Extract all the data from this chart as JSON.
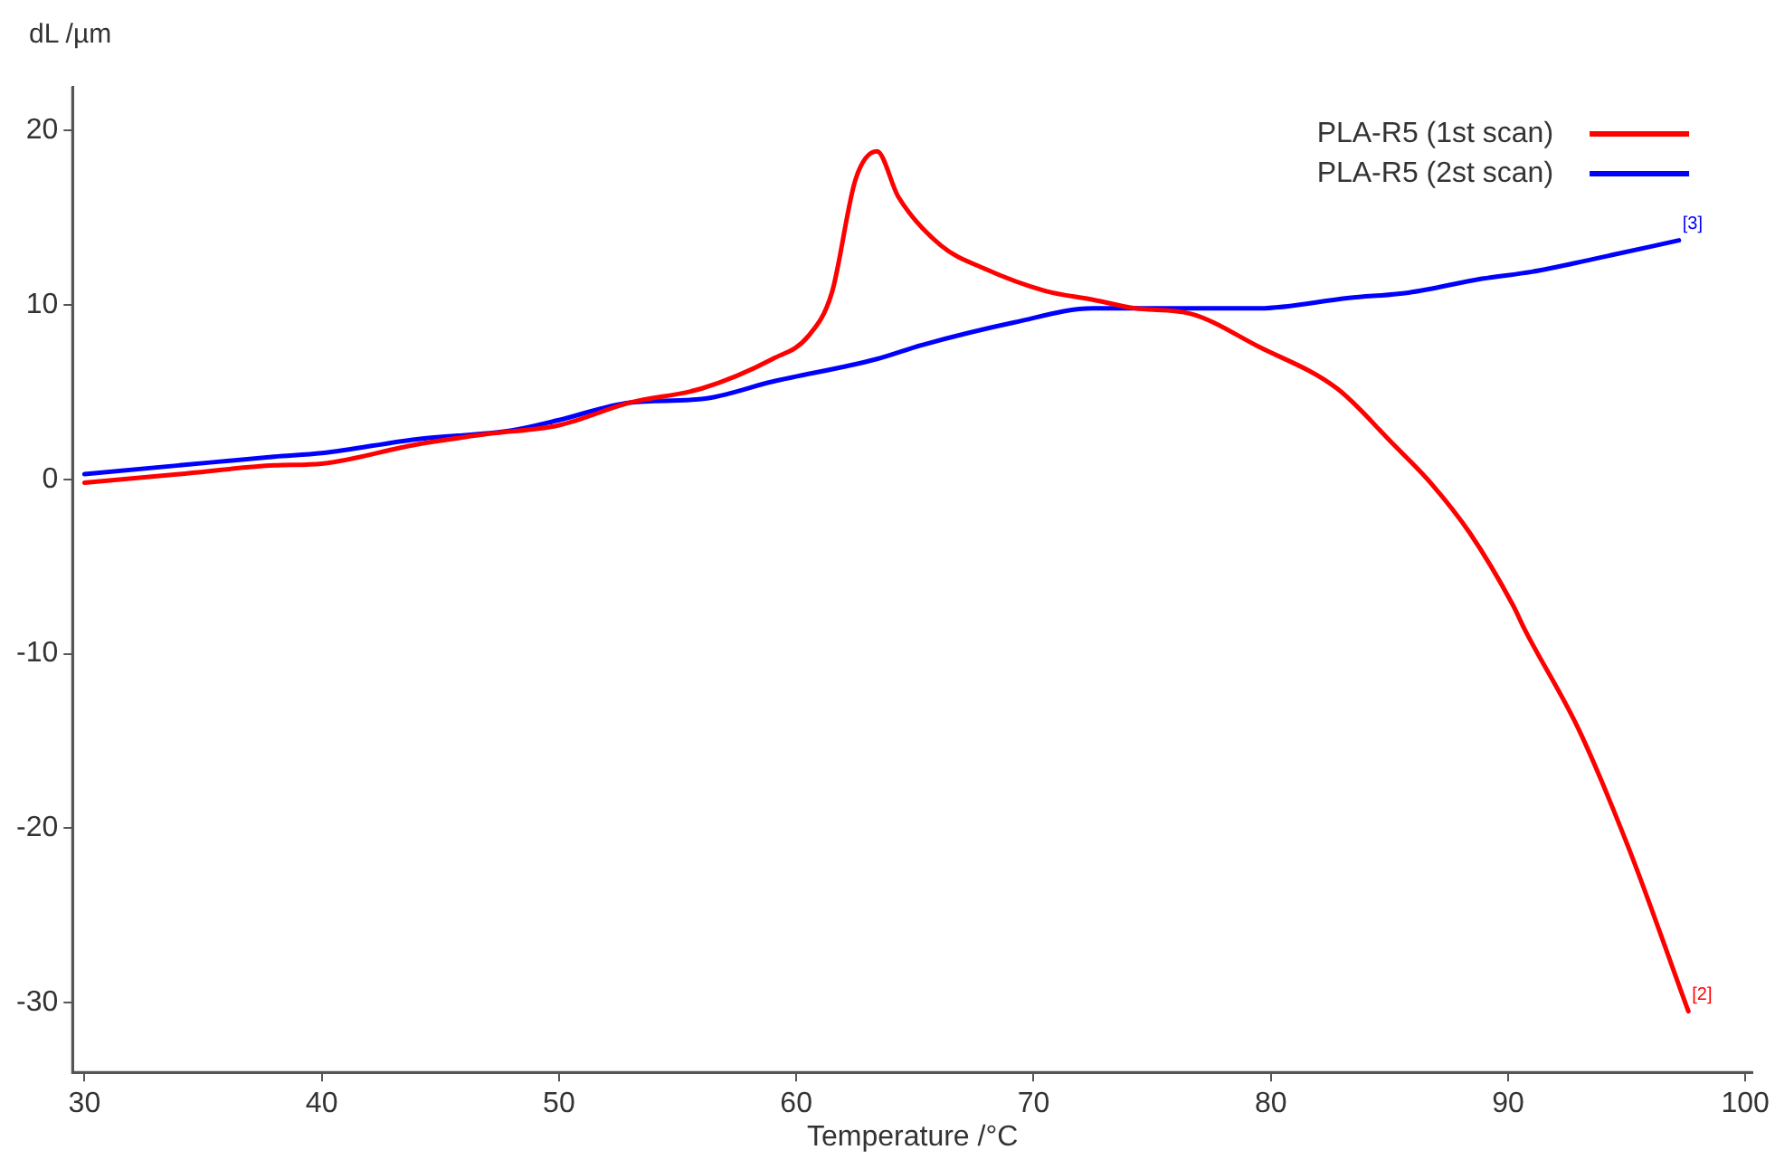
{
  "chart_data": {
    "type": "line",
    "xlabel": "Temperature /°C",
    "ylabel": "dL /µm",
    "xlim": [
      29.5,
      100.3
    ],
    "xticks": [
      30,
      40,
      50,
      60,
      70,
      80,
      90,
      100
    ],
    "ylim": [
      -34,
      22.5
    ],
    "yticks": [
      -30,
      -20,
      -10,
      0,
      10,
      20
    ],
    "grid": false,
    "legend": "top right",
    "marker": "none",
    "line_style": "solid",
    "series": [
      {
        "name": "PLA-R5 (1st scan)",
        "color": "#ff0000",
        "x": [
          30,
          34,
          38,
          40,
          44,
          47,
          50,
          53,
          56,
          59,
          60.5,
          61.5,
          62.5,
          63.4,
          64.3,
          66.1,
          67.9,
          70.5,
          72.5,
          74.3,
          76.6,
          79.5,
          82.8,
          85.1,
          86.8,
          88.4,
          90.2,
          90.7,
          93,
          95.1,
          97.6
        ],
        "values": [
          -0.2,
          0.3,
          0.8,
          0.9,
          2,
          2.6,
          3.1,
          4.4,
          5.2,
          6.9,
          8.2,
          10.7,
          17.2,
          18.8,
          16.2,
          13.4,
          12.1,
          10.8,
          10.3,
          9.8,
          9.5,
          7.6,
          5.2,
          2.1,
          -0.3,
          -3.1,
          -7.2,
          -8.6,
          -14.4,
          -21.2,
          -30.5
        ]
      },
      {
        "name": "PLA-R5 (2st scan)",
        "color": "#0000ff",
        "x": [
          30,
          34,
          38,
          40,
          44,
          48,
          50,
          53,
          56,
          59,
          63.4,
          65.3,
          69.2,
          72.5,
          75.6,
          79.5,
          83.3,
          85.8,
          88.9,
          91,
          93.5,
          97.2
        ],
        "values": [
          0.3,
          0.8,
          1.3,
          1.5,
          2.3,
          2.8,
          3.4,
          4.4,
          4.6,
          5.6,
          6.9,
          7.7,
          9,
          9.8,
          9.8,
          9.8,
          10.4,
          10.7,
          11.5,
          11.9,
          12.6,
          13.7
        ]
      }
    ],
    "annotations": [
      {
        "text": "[2]",
        "x": 97.6,
        "y": -30.5
      },
      {
        "text": "[3]",
        "x": 97.2,
        "y": 13.7
      }
    ]
  }
}
